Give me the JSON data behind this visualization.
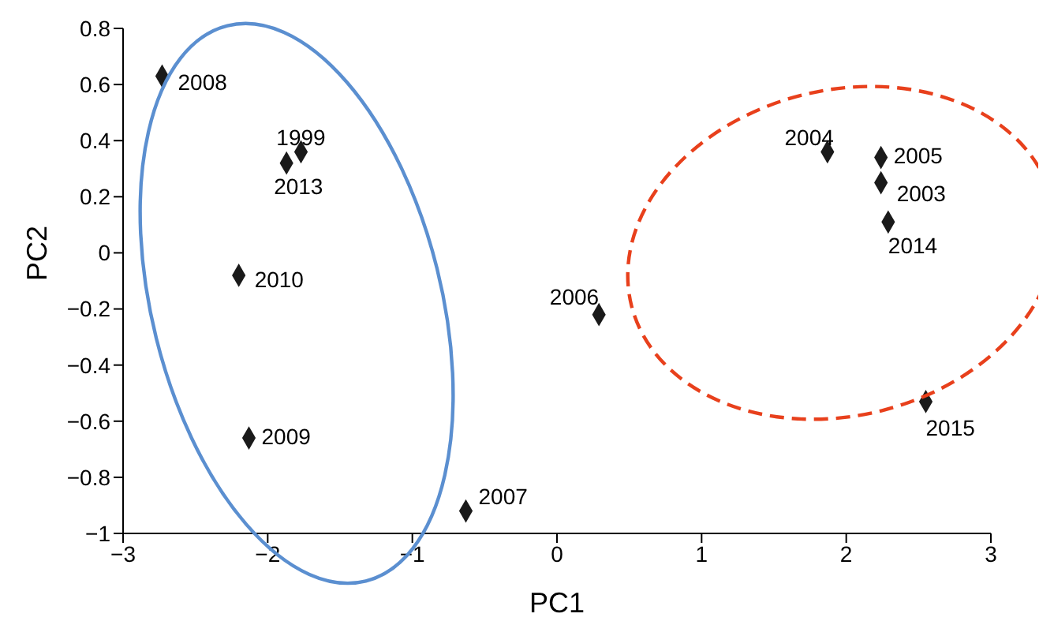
{
  "chart_data": {
    "type": "scatter",
    "xlabel": "PC1",
    "ylabel": "PC2",
    "x": [
      -2.73,
      -1.77,
      -1.87,
      -2.2,
      -2.13,
      -0.63,
      0.29,
      1.87,
      2.24,
      2.24,
      2.29,
      2.55
    ],
    "values": [
      0.63,
      0.36,
      0.32,
      -0.08,
      -0.66,
      -0.92,
      -0.22,
      0.36,
      0.34,
      0.25,
      0.11,
      -0.53
    ],
    "color": "#1a1a1a",
    "marker": "diamond",
    "xlim": [
      -3,
      3
    ],
    "xticks": [
      {
        "value": -3,
        "label": "−3"
      },
      {
        "value": -2,
        "label": "−2"
      },
      {
        "value": -1,
        "label": "−1"
      },
      0,
      1,
      2,
      3
    ],
    "ylim": [
      -1,
      0.8
    ],
    "yticks": [
      {
        "value": -1,
        "label": "−1"
      },
      {
        "value": -0.8,
        "label": "−0.8"
      },
      {
        "value": -0.6,
        "label": "−0.6"
      },
      {
        "value": -0.4,
        "label": "−0.4"
      },
      {
        "value": -0.2,
        "label": "−0.2"
      },
      0,
      0.2,
      0.4,
      0.6,
      0.8
    ],
    "annotations": [
      {
        "text": "2008",
        "x": -2.73,
        "y": 0.63
      },
      {
        "text": "1999",
        "x": -1.77,
        "y": 0.36
      },
      {
        "text": "2013",
        "x": -1.87,
        "y": 0.32
      },
      {
        "text": "2010",
        "x": -2.2,
        "y": -0.08
      },
      {
        "text": "2009",
        "x": -2.13,
        "y": -0.66
      },
      {
        "text": "2007",
        "x": -0.63,
        "y": -0.92
      },
      {
        "text": "2006",
        "x": 0.29,
        "y": -0.22
      },
      {
        "text": "2004",
        "x": 1.87,
        "y": 0.36
      },
      {
        "text": "2005",
        "x": 2.24,
        "y": 0.34
      },
      {
        "text": "2003",
        "x": 2.24,
        "y": 0.25
      },
      {
        "text": "2014",
        "x": 2.29,
        "y": 0.11
      },
      {
        "text": "2015",
        "x": 2.55,
        "y": -0.53
      }
    ]
  }
}
